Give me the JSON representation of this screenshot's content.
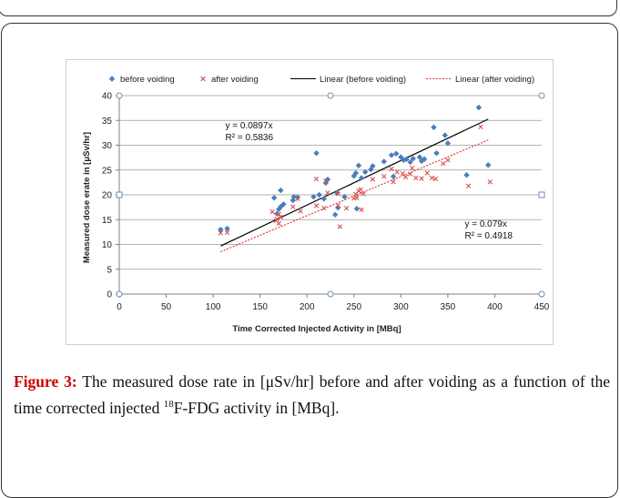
{
  "caption": {
    "label": "Figure 3:",
    "text_before_sup": " The measured dose rate in [μSv/hr] before and after voiding as a function of the time corrected injected ",
    "sup": "18",
    "text_after_sup": "F-FDG activity in [MBq]."
  },
  "chart_data": {
    "type": "scatter",
    "title": "",
    "xlabel": "Time Corrected Injected Activity in [MBq]",
    "ylabel": "Measured dose erate in [μSv/hr]",
    "xlim": [
      0,
      450
    ],
    "ylim": [
      0,
      40
    ],
    "xticks": [
      "0",
      "50",
      "100",
      "150",
      "200",
      "250",
      "300",
      "350",
      "400",
      "450"
    ],
    "yticks": [
      "0",
      "5",
      "10",
      "15",
      "20",
      "25",
      "30",
      "35",
      "40"
    ],
    "grid": true,
    "legend_position": "top",
    "series": [
      {
        "name": "before voiding",
        "marker": "diamond",
        "color": "#4a7ebb",
        "points": [
          [
            108,
            13.0
          ],
          [
            115,
            13.2
          ],
          [
            165,
            19.4
          ],
          [
            168,
            16.2
          ],
          [
            170,
            17.1
          ],
          [
            172,
            17.6
          ],
          [
            172,
            20.9
          ],
          [
            175,
            18.1
          ],
          [
            185,
            18.9
          ],
          [
            186,
            19.6
          ],
          [
            190,
            19.5
          ],
          [
            207,
            19.6
          ],
          [
            210,
            28.4
          ],
          [
            213,
            20.0
          ],
          [
            218,
            19.2
          ],
          [
            220,
            22.4
          ],
          [
            222,
            23.1
          ],
          [
            230,
            16.0
          ],
          [
            232,
            20.4
          ],
          [
            233,
            17.4
          ],
          [
            240,
            19.6
          ],
          [
            250,
            23.8
          ],
          [
            252,
            24.4
          ],
          [
            253,
            17.2
          ],
          [
            255,
            25.9
          ],
          [
            258,
            23.4
          ],
          [
            262,
            24.6
          ],
          [
            268,
            25.1
          ],
          [
            270,
            25.8
          ],
          [
            282,
            26.7
          ],
          [
            290,
            28.0
          ],
          [
            292,
            23.7
          ],
          [
            295,
            28.3
          ],
          [
            300,
            27.6
          ],
          [
            303,
            27.0
          ],
          [
            306,
            27.2
          ],
          [
            310,
            26.6
          ],
          [
            313,
            27.3
          ],
          [
            320,
            27.6
          ],
          [
            322,
            26.8
          ],
          [
            325,
            27.2
          ],
          [
            335,
            33.6
          ],
          [
            338,
            28.4
          ],
          [
            347,
            32.0
          ],
          [
            350,
            30.4
          ],
          [
            370,
            24.0
          ],
          [
            383,
            37.6
          ],
          [
            393,
            26.0
          ]
        ]
      },
      {
        "name": "after voiding",
        "marker": "x",
        "color": "#d94f4f",
        "points": [
          [
            108,
            12.3
          ],
          [
            115,
            12.4
          ],
          [
            163,
            16.6
          ],
          [
            167,
            14.8
          ],
          [
            168,
            15.1
          ],
          [
            170,
            16.1
          ],
          [
            170,
            14.2
          ],
          [
            172,
            15.5
          ],
          [
            185,
            17.6
          ],
          [
            190,
            19.2
          ],
          [
            193,
            16.7
          ],
          [
            210,
            23.2
          ],
          [
            210,
            17.8
          ],
          [
            218,
            17.3
          ],
          [
            220,
            22.8
          ],
          [
            222,
            20.4
          ],
          [
            233,
            17.9
          ],
          [
            233,
            20.2
          ],
          [
            235,
            13.6
          ],
          [
            242,
            17.3
          ],
          [
            250,
            19.3
          ],
          [
            252,
            20.1
          ],
          [
            253,
            19.4
          ],
          [
            255,
            20.8
          ],
          [
            257,
            21.1
          ],
          [
            258,
            17.0
          ],
          [
            260,
            20.2
          ],
          [
            270,
            23.1
          ],
          [
            282,
            23.7
          ],
          [
            290,
            25.2
          ],
          [
            292,
            22.6
          ],
          [
            296,
            24.6
          ],
          [
            302,
            24.3
          ],
          [
            305,
            23.6
          ],
          [
            310,
            24.2
          ],
          [
            312,
            25.4
          ],
          [
            316,
            23.4
          ],
          [
            322,
            23.3
          ],
          [
            328,
            24.4
          ],
          [
            333,
            23.4
          ],
          [
            337,
            23.2
          ],
          [
            345,
            26.3
          ],
          [
            350,
            27.0
          ],
          [
            372,
            21.8
          ],
          [
            385,
            33.7
          ],
          [
            395,
            22.6
          ]
        ]
      },
      {
        "name": "Linear (before voiding)",
        "type": "line",
        "style": "solid",
        "color": "#000000",
        "slope": 0.0897,
        "x_range": [
          108,
          393
        ]
      },
      {
        "name": "Linear (after voiding)",
        "type": "line",
        "style": "dotted",
        "color": "#e03030",
        "slope": 0.079,
        "x_range": [
          108,
          393
        ]
      }
    ],
    "annotations": [
      {
        "lines": [
          "y = 0.0897x",
          "R² = 0.5836"
        ],
        "x": 113,
        "y": 33.4
      },
      {
        "lines": [
          "y = 0.079x",
          "R² = 0.4918"
        ],
        "x": 368,
        "y": 13.6
      }
    ]
  }
}
